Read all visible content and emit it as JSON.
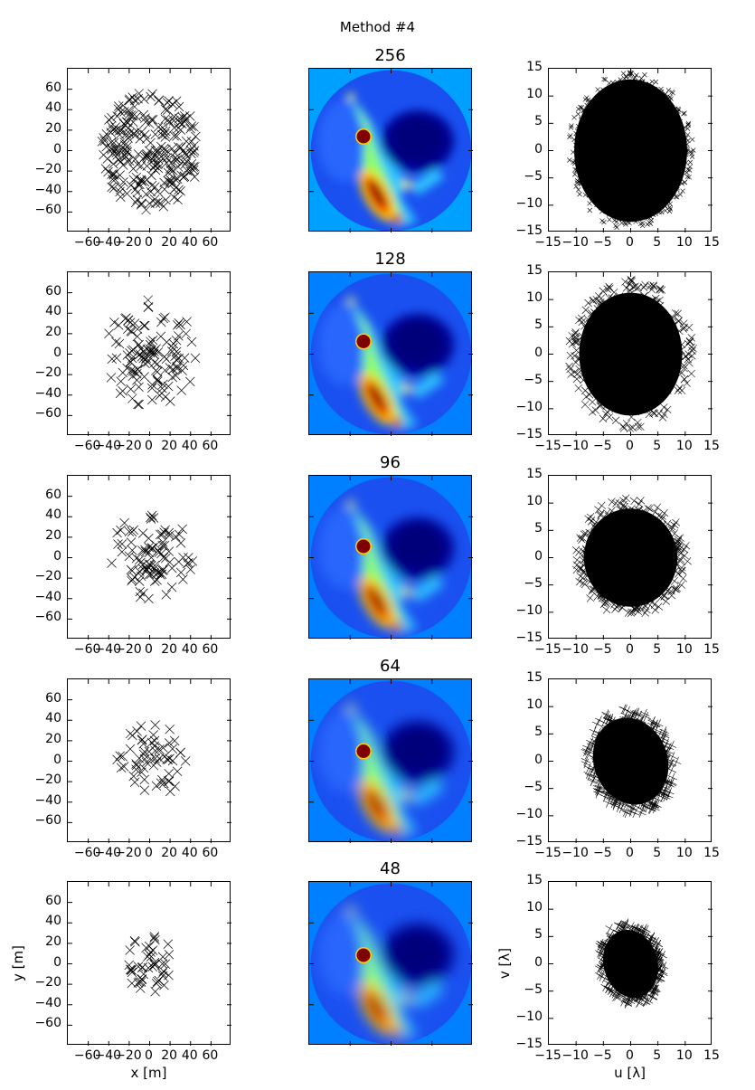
{
  "figure": {
    "suptitle": "Method #4",
    "colors": {
      "cmap": "jet",
      "marker": "#000000",
      "image_bg_row1": "#00a0ff",
      "image_bg_other": "#0080ff"
    }
  },
  "chart_data": [
    {
      "type": "scatter",
      "panel": "antenna-layout-256",
      "marker": "x",
      "xlabel": "",
      "ylabel": "",
      "xlim": [
        -75,
        75
      ],
      "ylim": [
        -75,
        75
      ],
      "xticks": [
        "−60",
        "−40",
        "−20",
        "0",
        "20",
        "40",
        "60"
      ],
      "yticks": [
        "60",
        "40",
        "20",
        "0",
        "−20",
        "−40",
        "−60"
      ],
      "description": "256 antennas in filled elliptical distribution, x range ~-45..45, y range ~-55..55"
    },
    {
      "type": "heatmap",
      "panel": "image-256",
      "title": "256",
      "cmap": "jet",
      "description": "Circular sky image; dark blue region upper-right, red compact source left-center, red elongated ridge lower-center"
    },
    {
      "type": "scatter",
      "panel": "uv-256",
      "marker": "x",
      "xlim": [
        -15,
        15
      ],
      "ylim": [
        -15,
        15
      ],
      "xticks": [
        "−15",
        "−10",
        "−5",
        "0",
        "5",
        "10",
        "15"
      ],
      "yticks": [
        "15",
        "10",
        "5",
        "0",
        "−5",
        "−10",
        "−15"
      ],
      "description": "Dense filled ellipse, u ~-11.5..11.5, v ~-14.5..14.5"
    },
    {
      "type": "scatter",
      "panel": "antenna-layout-128",
      "marker": "x",
      "xlim": [
        -75,
        75
      ],
      "ylim": [
        -75,
        75
      ],
      "xticks": [
        "−60",
        "−40",
        "−20",
        "0",
        "20",
        "40",
        "60"
      ],
      "yticks": [
        "60",
        "40",
        "20",
        "0",
        "−20",
        "−40",
        "−60"
      ],
      "description": "128 antennas, x ~-40..45, y ~-52..54"
    },
    {
      "type": "heatmap",
      "panel": "image-128",
      "title": "128",
      "cmap": "jet"
    },
    {
      "type": "scatter",
      "panel": "uv-128",
      "marker": "x",
      "xlim": [
        -15,
        15
      ],
      "ylim": [
        -15,
        15
      ],
      "xticks": [
        "−15",
        "−10",
        "−5",
        "0",
        "5",
        "10",
        "15"
      ],
      "yticks": [
        "15",
        "10",
        "5",
        "0",
        "−5",
        "−10",
        "−15"
      ],
      "description": "Filled ellipse, u ~-10.5..10.5, v ~-13.5..13.5"
    },
    {
      "type": "scatter",
      "panel": "antenna-layout-96",
      "marker": "x",
      "xlim": [
        -75,
        75
      ],
      "ylim": [
        -75,
        75
      ],
      "xticks": [
        "−60",
        "−40",
        "−20",
        "0",
        "20",
        "40",
        "60"
      ],
      "yticks": [
        "60",
        "40",
        "20",
        "0",
        "−20",
        "−40",
        "−60"
      ],
      "description": "96 antennas, x ~-37..40, y ~-43..42"
    },
    {
      "type": "heatmap",
      "panel": "image-96",
      "title": "96",
      "cmap": "jet"
    },
    {
      "type": "scatter",
      "panel": "uv-96",
      "marker": "x",
      "xlim": [
        -15,
        15
      ],
      "ylim": [
        -15,
        15
      ],
      "xticks": [
        "−15",
        "−10",
        "−5",
        "0",
        "5",
        "10",
        "15"
      ],
      "yticks": [
        "15",
        "10",
        "5",
        "0",
        "−5",
        "−10",
        "−15"
      ],
      "description": "Filled blob, u ~-10..10, v ~-10.5..10.5"
    },
    {
      "type": "scatter",
      "panel": "antenna-layout-64",
      "marker": "x",
      "xlim": [
        -75,
        75
      ],
      "ylim": [
        -75,
        75
      ],
      "xticks": [
        "−60",
        "−40",
        "−20",
        "0",
        "20",
        "40",
        "60"
      ],
      "yticks": [
        "60",
        "40",
        "20",
        "0",
        "−20",
        "−40",
        "−60"
      ],
      "description": "64 antennas, x ~-32..35, y ~-36..37"
    },
    {
      "type": "heatmap",
      "panel": "image-64",
      "title": "64",
      "cmap": "jet"
    },
    {
      "type": "scatter",
      "panel": "uv-64",
      "marker": "x",
      "xlim": [
        -15,
        15
      ],
      "ylim": [
        -15,
        15
      ],
      "xticks": [
        "−15",
        "−10",
        "−5",
        "0",
        "5",
        "10",
        "15"
      ],
      "yticks": [
        "15",
        "10",
        "5",
        "0",
        "−5",
        "−10",
        "−15"
      ],
      "description": "Tilted blob, u ~-8.5..8.5, v ~-9.5..9.5"
    },
    {
      "type": "scatter",
      "panel": "antenna-layout-48",
      "marker": "x",
      "xlabel": "x [m]",
      "ylabel": "y [m]",
      "xlim": [
        -75,
        75
      ],
      "ylim": [
        -75,
        75
      ],
      "xticks": [
        "−60",
        "−40",
        "−20",
        "0",
        "20",
        "40",
        "60"
      ],
      "yticks": [
        "60",
        "40",
        "20",
        "0",
        "−20",
        "−40",
        "−60"
      ],
      "description": "48 antennas, x ~-25..22, y ~-30..28"
    },
    {
      "type": "heatmap",
      "panel": "image-48",
      "title": "48",
      "cmap": "jet"
    },
    {
      "type": "scatter",
      "panel": "uv-48",
      "marker": "x",
      "xlabel": "u [λ]",
      "ylabel": "v [λ]",
      "xlim": [
        -15,
        15
      ],
      "ylim": [
        -15,
        15
      ],
      "xticks": [
        "−15",
        "−10",
        "−5",
        "0",
        "5",
        "10",
        "15"
      ],
      "yticks": [
        "15",
        "10",
        "5",
        "0",
        "−5",
        "−10",
        "−15"
      ],
      "description": "Tilted blob, u ~-6..6, v ~-7.5..7.5"
    }
  ],
  "rows": [
    {
      "title": "256",
      "ant_rx": 45,
      "ant_ry": 55,
      "n": 256,
      "uv_rx": 11.5,
      "uv_ry": 14.5,
      "uv_rot": 0,
      "bg": "#00a0ff",
      "seed": 11
    },
    {
      "title": "128",
      "ant_rx": 42,
      "ant_ry": 50,
      "n": 128,
      "uv_rx": 10.5,
      "uv_ry": 12.5,
      "uv_rot": 0,
      "bg": "#0080ff",
      "seed": 23
    },
    {
      "title": "96",
      "ant_rx": 38,
      "ant_ry": 42,
      "n": 96,
      "uv_rx": 9.5,
      "uv_ry": 10,
      "uv_rot": -5,
      "bg": "#0080ff",
      "seed": 37
    },
    {
      "title": "64",
      "ant_rx": 32,
      "ant_ry": 36,
      "n": 64,
      "uv_rx": 7.5,
      "uv_ry": 9,
      "uv_rot": -20,
      "bg": "#0080ff",
      "seed": 53
    },
    {
      "title": "48",
      "ant_rx": 24,
      "ant_ry": 28,
      "n": 48,
      "uv_rx": 5.5,
      "uv_ry": 7,
      "uv_rot": -15,
      "bg": "#0080ff",
      "seed": 71
    }
  ],
  "labels": {
    "x_m": "x [m]",
    "y_m": "y [m]",
    "u_lambda": "u [λ]",
    "v_lambda": "v [λ]"
  }
}
